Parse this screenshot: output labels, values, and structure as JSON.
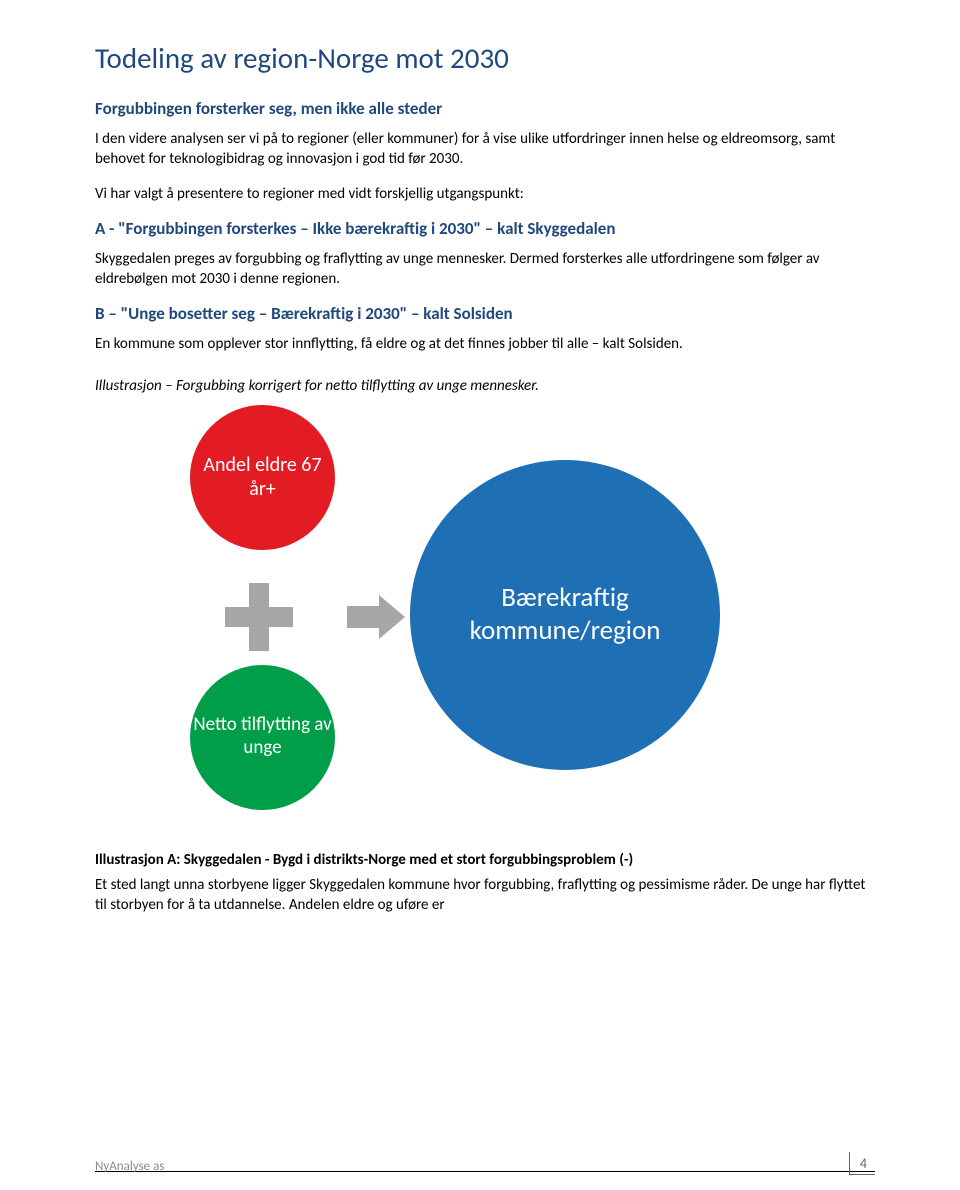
{
  "title": "Todeling av region-Norge mot 2030",
  "intro_heading": "Forgubbingen forsterker seg, men ikke alle steder",
  "intro_p1": "I den videre analysen ser vi på to regioner (eller kommuner) for å vise ulike utfordringer innen helse og eldreomsorg, samt behovet for teknologibidrag og innovasjon i god tid før 2030.",
  "intro_p2": "Vi har valgt å presentere to regioner med vidt forskjellig utgangspunkt:",
  "section_a": {
    "heading": "A - \"Forgubbingen forsterkes – Ikke bærekraftig i 2030\" – kalt Skyggedalen",
    "text": "Skyggedalen preges av forgubbing og fraflytting av unge mennesker. Dermed forsterkes alle utfordringene som følger av eldrebølgen mot 2030 i denne regionen."
  },
  "section_b": {
    "heading": "B – \"Unge bosetter seg – Bærekraftig i 2030\" – kalt Solsiden",
    "text": "En kommune som opplever stor innflytting, få eldre og at det finnes jobber til alle – kalt Solsiden."
  },
  "illustration_caption": "Illustrasjon – Forgubbing korrigert for netto tilflytting av unge mennesker.",
  "diagram": {
    "red": {
      "text": "Andel eldre 67 år+",
      "color": "#e31b23"
    },
    "green": {
      "text": "Netto tilflytting av unge",
      "color": "#009e49"
    },
    "blue": {
      "text": "Bærekraftig kommune/region",
      "color": "#1f6fb5"
    },
    "connector_color": "#a6a6a6"
  },
  "illustration_a": {
    "heading": "Illustrasjon A: Skyggedalen - Bygd i distrikts-Norge med et stort forgubbingsproblem (-)",
    "text": "Et sted langt unna storbyene ligger Skyggedalen kommune hvor forgubbing, fraflytting og pessimisme råder. De unge har flyttet til storbyen for å ta utdannelse. Andelen eldre og uføre er"
  },
  "footer": {
    "brand": "NyAnalyse as",
    "page": "4"
  }
}
